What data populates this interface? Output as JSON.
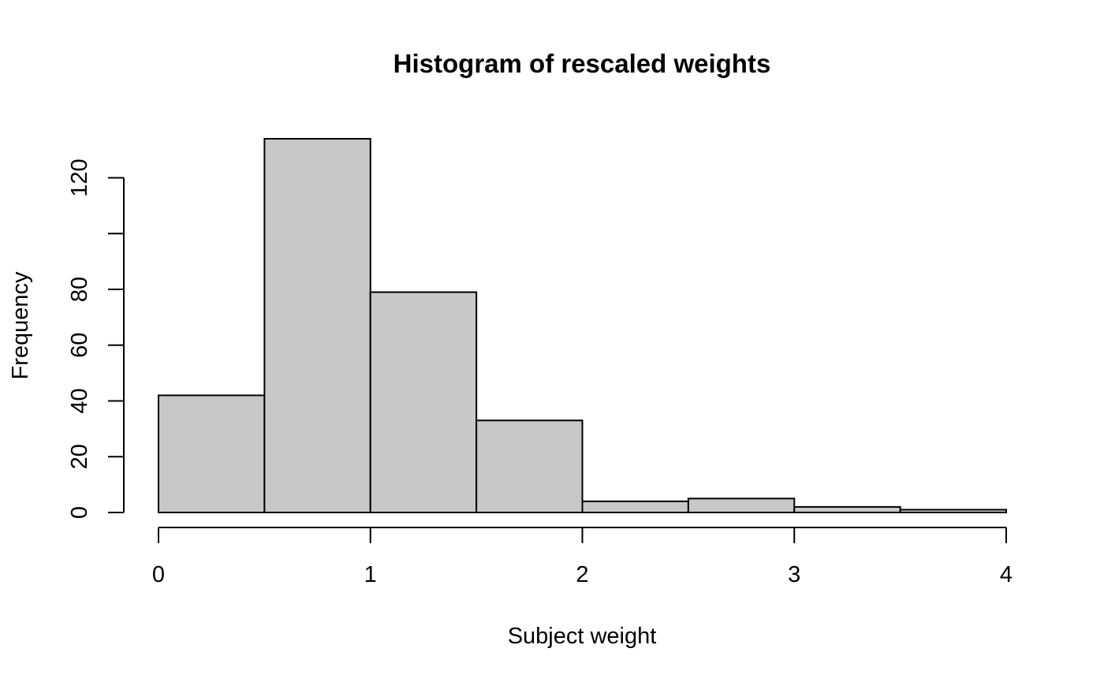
{
  "chart_data": {
    "type": "bar",
    "subtype": "histogram",
    "title": "Histogram of rescaled weights",
    "xlabel": "Subject weight",
    "ylabel": "Frequency",
    "bins": [
      {
        "start": 0.0,
        "end": 0.5,
        "count": 42
      },
      {
        "start": 0.5,
        "end": 1.0,
        "count": 134
      },
      {
        "start": 1.0,
        "end": 1.5,
        "count": 79
      },
      {
        "start": 1.5,
        "end": 2.0,
        "count": 33
      },
      {
        "start": 2.0,
        "end": 2.5,
        "count": 4
      },
      {
        "start": 2.5,
        "end": 3.0,
        "count": 5
      },
      {
        "start": 3.0,
        "end": 3.5,
        "count": 2
      },
      {
        "start": 3.5,
        "end": 4.0,
        "count": 1
      }
    ],
    "xlim": [
      0,
      4
    ],
    "ylim": [
      0,
      134
    ],
    "x_ticks": [
      0,
      1,
      2,
      3,
      4
    ],
    "y_ticks": [
      0,
      20,
      40,
      60,
      80,
      100,
      120
    ],
    "y_tick_labels": [
      "0",
      "20",
      "40",
      "60",
      "80",
      "",
      "120"
    ],
    "grid": false,
    "legend": "none",
    "bar_color": "#c8c8c8",
    "edge_color": "#000000"
  }
}
